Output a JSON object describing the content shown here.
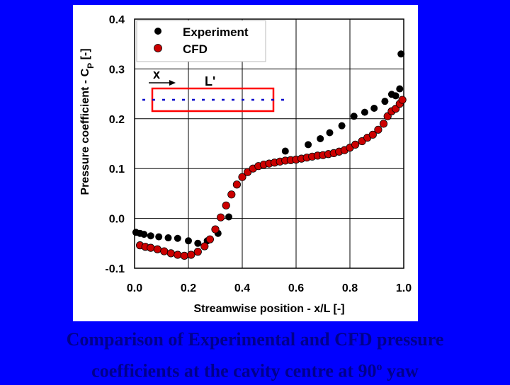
{
  "caption": {
    "line1": "Comparison of Experimental and CFD pressure",
    "line2_prefix": "coefficients at the cavity centre at 90",
    "line2_sup": "o",
    "line2_suffix": " yaw"
  },
  "chart_data": {
    "type": "scatter",
    "xlabel": "Streamwise position - x/L [-]",
    "ylabel_main": "Pressure coefficient - C",
    "ylabel_sub": "P",
    "ylabel_tail": " [-]",
    "xlim": [
      0.0,
      1.0
    ],
    "ylim": [
      -0.1,
      0.4
    ],
    "x_ticks": [
      "0.0",
      "0.2",
      "0.4",
      "0.6",
      "0.8",
      "1.0"
    ],
    "x_tick_values": [
      0.0,
      0.2,
      0.4,
      0.6,
      0.8,
      1.0
    ],
    "y_ticks": [
      "-0.1",
      "0.0",
      "0.1",
      "0.2",
      "0.3",
      "0.4"
    ],
    "y_tick_values": [
      -0.1,
      0.0,
      0.1,
      0.2,
      0.3,
      0.4
    ],
    "grid": true,
    "legend_position": "top-left",
    "series": [
      {
        "name": "Experiment",
        "color": "#000000",
        "x": [
          0.005,
          0.02,
          0.035,
          0.06,
          0.09,
          0.125,
          0.16,
          0.2,
          0.235,
          0.27,
          0.31,
          0.35,
          0.56,
          0.645,
          0.69,
          0.725,
          0.77,
          0.815,
          0.855,
          0.89,
          0.93,
          0.955,
          0.97,
          0.985,
          0.99
        ],
        "y": [
          -0.028,
          -0.03,
          -0.032,
          -0.035,
          -0.037,
          -0.039,
          -0.04,
          -0.045,
          -0.05,
          -0.045,
          -0.03,
          0.003,
          0.135,
          0.148,
          0.16,
          0.172,
          0.186,
          0.205,
          0.213,
          0.221,
          0.235,
          0.249,
          0.246,
          0.26,
          0.33
        ]
      },
      {
        "name": "CFD",
        "color": "#cc0000",
        "x": [
          0.02,
          0.04,
          0.06,
          0.085,
          0.11,
          0.135,
          0.16,
          0.185,
          0.21,
          0.235,
          0.26,
          0.28,
          0.3,
          0.32,
          0.34,
          0.36,
          0.38,
          0.4,
          0.42,
          0.44,
          0.46,
          0.48,
          0.5,
          0.52,
          0.54,
          0.56,
          0.58,
          0.6,
          0.62,
          0.64,
          0.66,
          0.68,
          0.7,
          0.72,
          0.74,
          0.76,
          0.78,
          0.8,
          0.82,
          0.845,
          0.865,
          0.885,
          0.905,
          0.925,
          0.94,
          0.955,
          0.97,
          0.985,
          0.995
        ],
        "y": [
          -0.054,
          -0.057,
          -0.059,
          -0.062,
          -0.066,
          -0.07,
          -0.073,
          -0.075,
          -0.073,
          -0.067,
          -0.056,
          -0.042,
          -0.022,
          0.002,
          0.026,
          0.048,
          0.068,
          0.083,
          0.093,
          0.1,
          0.105,
          0.108,
          0.11,
          0.112,
          0.114,
          0.116,
          0.117,
          0.118,
          0.12,
          0.122,
          0.124,
          0.126,
          0.127,
          0.129,
          0.131,
          0.134,
          0.137,
          0.142,
          0.148,
          0.155,
          0.162,
          0.168,
          0.178,
          0.19,
          0.205,
          0.215,
          0.22,
          0.23,
          0.238
        ]
      }
    ]
  },
  "legend": {
    "experiment_label": "Experiment",
    "cfd_label": "CFD"
  },
  "inset": {
    "x_label": "x",
    "length_label": "L'",
    "box_color": "#ff0000",
    "dash_color": "#0000cc"
  }
}
